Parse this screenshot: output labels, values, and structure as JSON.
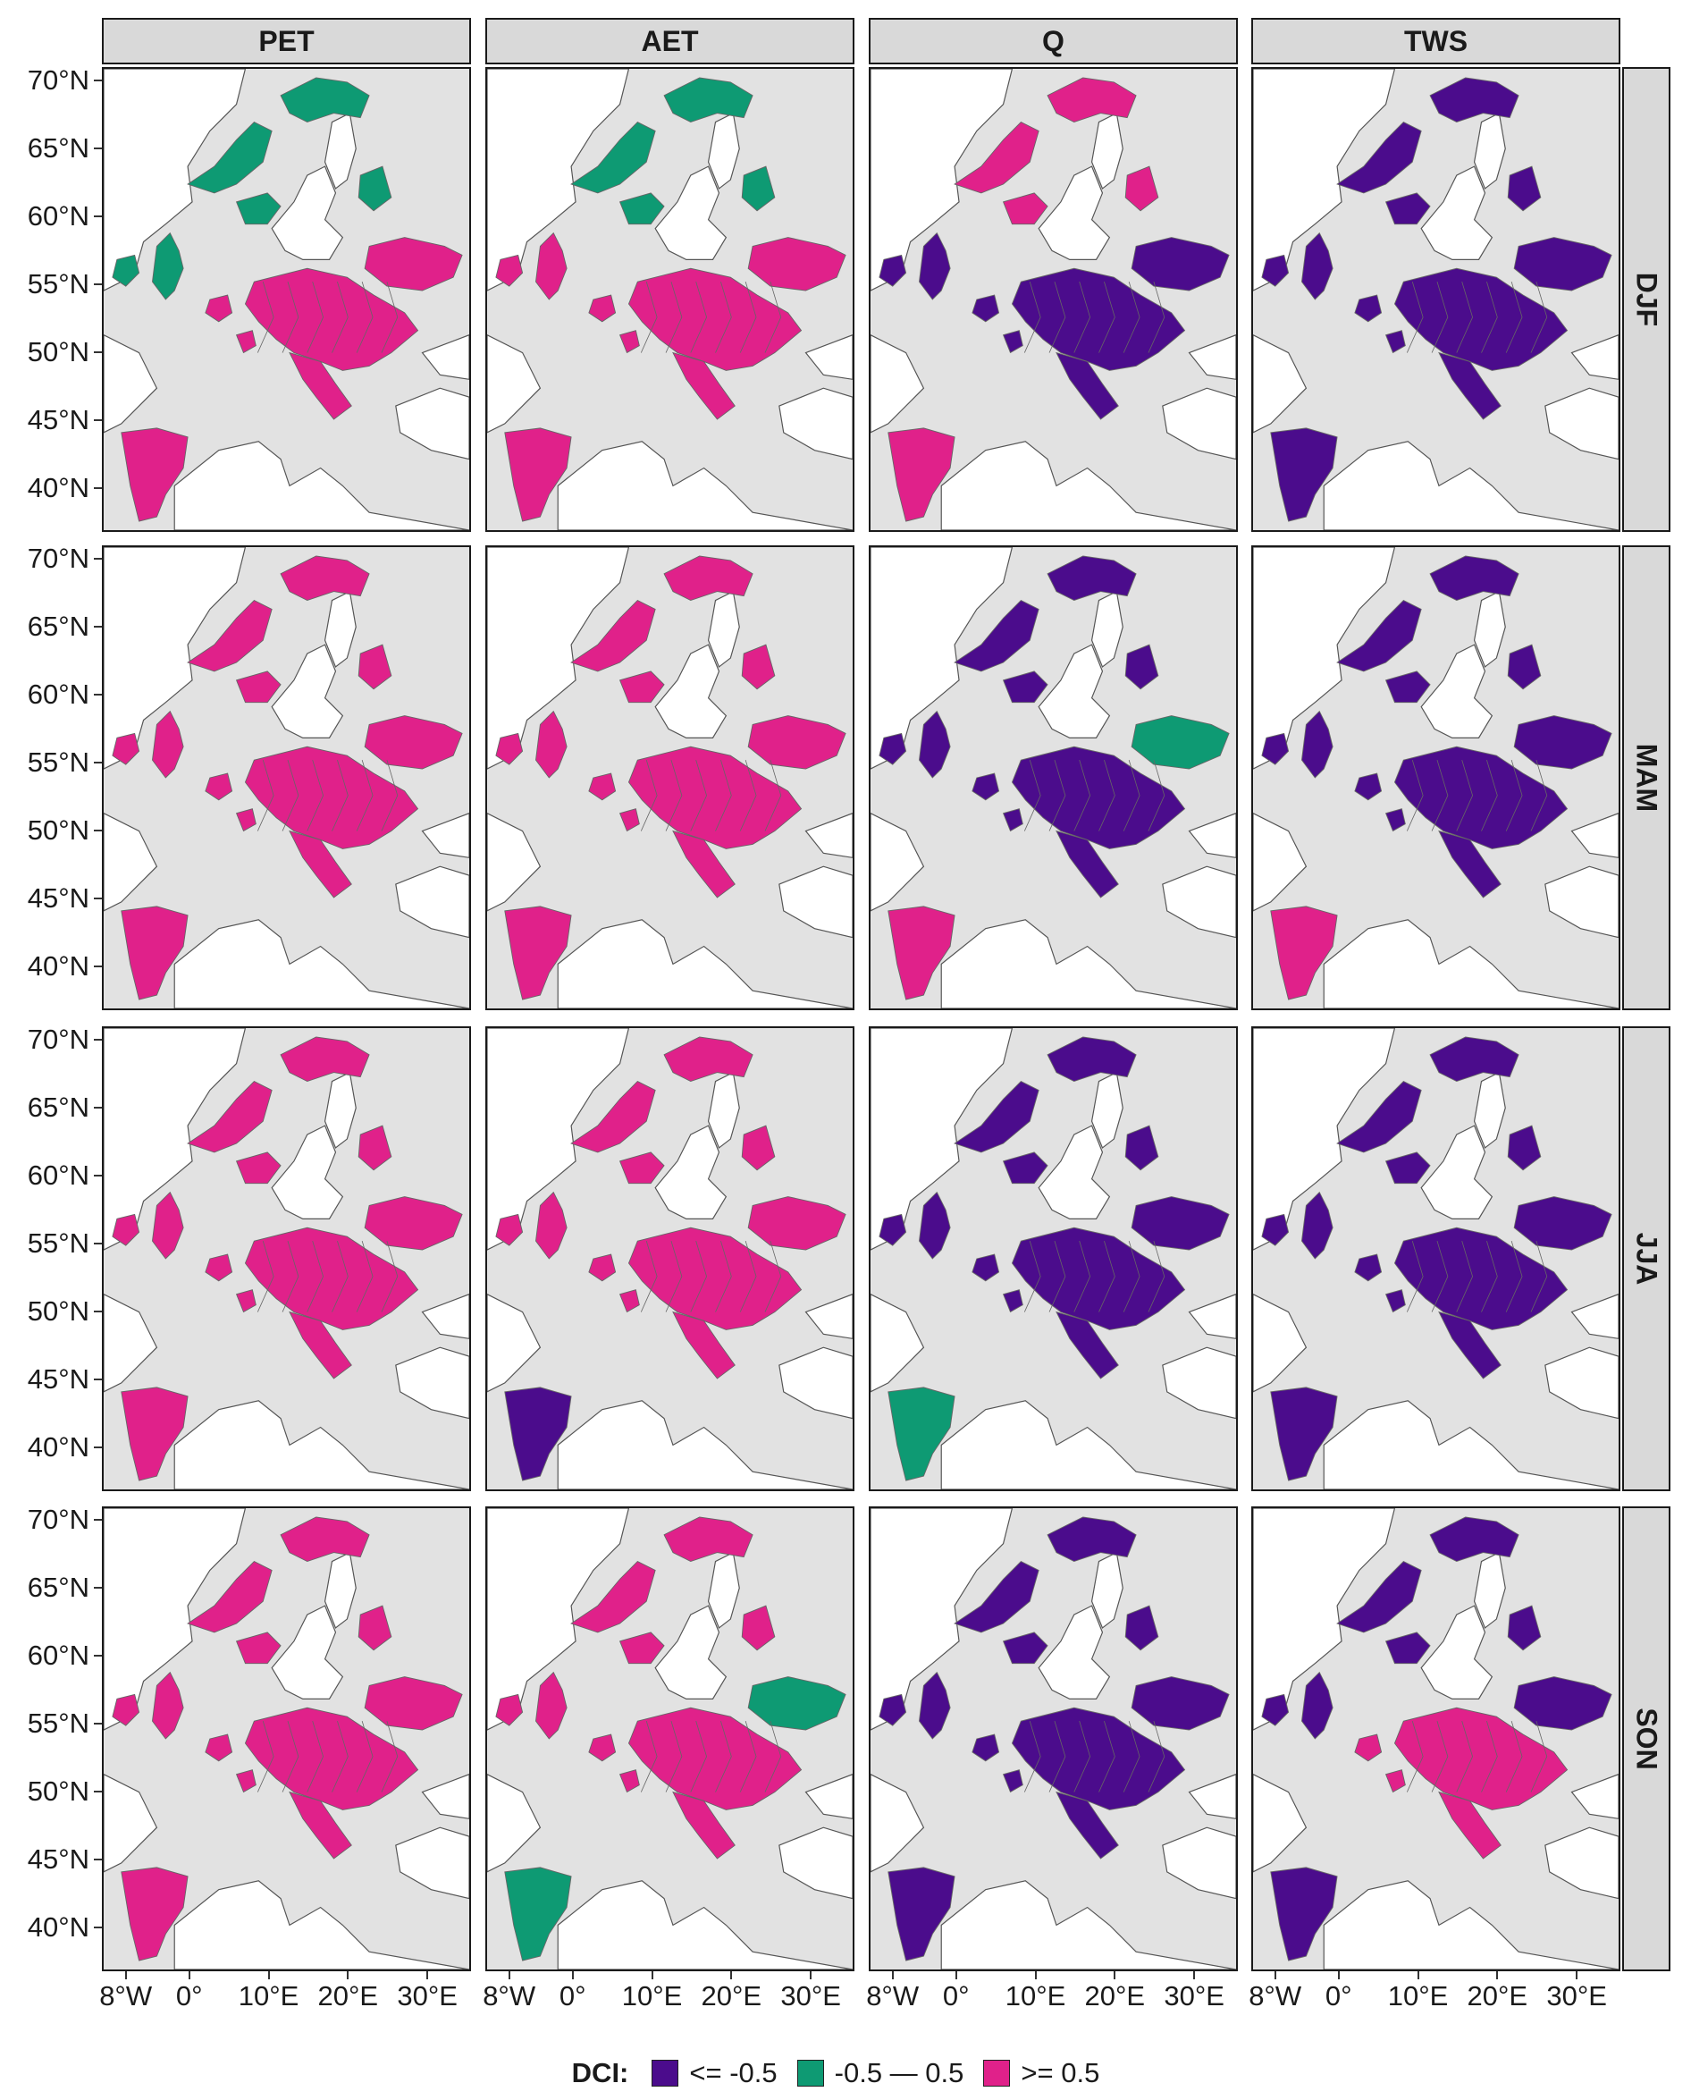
{
  "columns": [
    {
      "label": "PET"
    },
    {
      "label": "AET"
    },
    {
      "label": "Q"
    },
    {
      "label": "TWS"
    }
  ],
  "rows": [
    {
      "label": "DJF"
    },
    {
      "label": "MAM"
    },
    {
      "label": "JJA"
    },
    {
      "label": "SON"
    }
  ],
  "y_axis": {
    "ticks": [
      "70°N",
      "65°N",
      "60°N",
      "55°N",
      "50°N",
      "45°N",
      "40°N"
    ]
  },
  "x_axis": {
    "ticks": [
      "8°W",
      "0°",
      "10°E",
      "20°E",
      "30°E"
    ]
  },
  "legend": {
    "title": "DCI:",
    "items": [
      {
        "label": "<= -0.5",
        "color": "#4b0c8c"
      },
      {
        "label": "-0.5 — 0.5",
        "color": "#0e9a73"
      },
      {
        "label": ">= 0.5",
        "color": "#e0218a"
      }
    ]
  },
  "colors": {
    "low": "#4b0c8c",
    "mid": "#0e9a73",
    "high": "#e0218a",
    "land": "#e2e2e2",
    "water": "#ffffff",
    "border": "#666666"
  },
  "panel_dominant_class": [
    [
      "high",
      "high",
      "low",
      "low"
    ],
    [
      "high",
      "high",
      "low",
      "low"
    ],
    [
      "high",
      "high",
      "low",
      "low"
    ],
    [
      "high",
      "high",
      "low",
      "high"
    ]
  ]
}
